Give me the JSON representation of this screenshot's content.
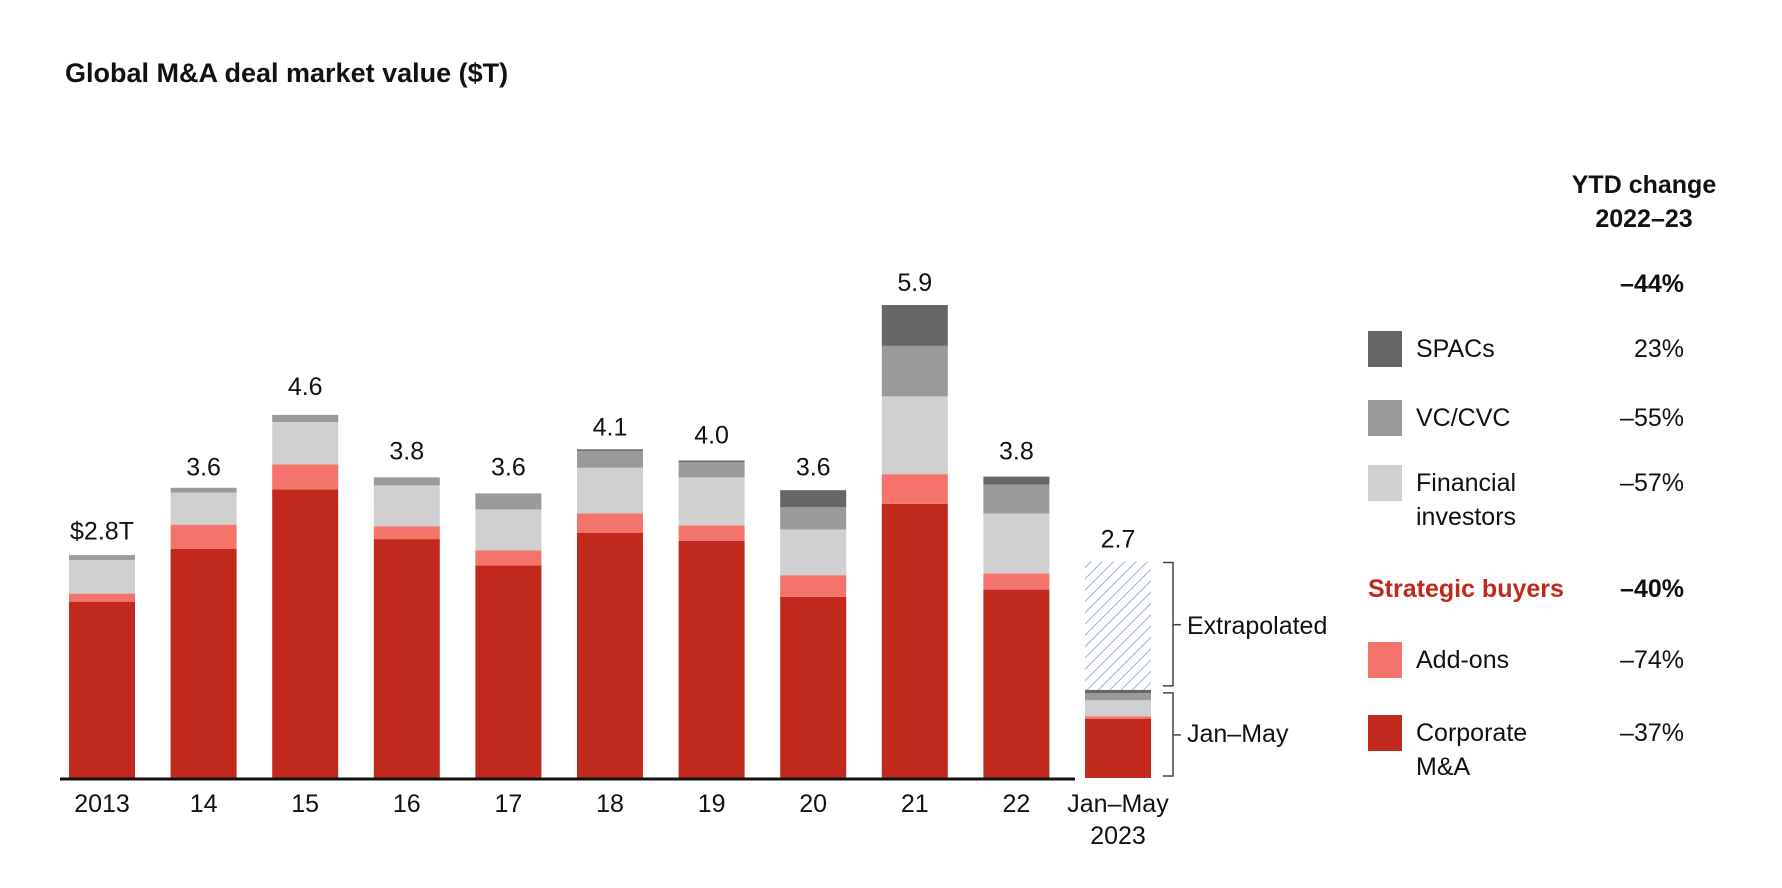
{
  "chart_data": {
    "type": "stacked_bar",
    "title": "Global M&A deal market value ($T)",
    "categories": [
      "2013",
      "14",
      "15",
      "16",
      "17",
      "18",
      "19",
      "20",
      "21",
      "22",
      "Jan–May 2023"
    ],
    "series": [
      {
        "name": "Corporate M&A",
        "color": "#c0291b",
        "values": [
          2.2,
          2.86,
          3.6,
          2.98,
          2.65,
          3.06,
          2.96,
          2.26,
          3.42,
          2.35,
          0.74
        ],
        "change": -37,
        "change_label": "–37%"
      },
      {
        "name": "Add-ons",
        "color": "#f4736b",
        "values": [
          0.1,
          0.3,
          0.31,
          0.16,
          0.19,
          0.24,
          0.19,
          0.27,
          0.37,
          0.2,
          0.03
        ],
        "change": -74,
        "change_label": "–74%"
      },
      {
        "name": "Financial investors",
        "color": "#d0d0d0",
        "values": [
          0.42,
          0.4,
          0.53,
          0.51,
          0.51,
          0.57,
          0.6,
          0.57,
          0.97,
          0.75,
          0.2
        ],
        "change": -57,
        "change_label": "–57%"
      },
      {
        "name": "VC/CVC",
        "color": "#9a9a9a",
        "values": [
          0.06,
          0.06,
          0.09,
          0.1,
          0.2,
          0.21,
          0.19,
          0.28,
          0.63,
          0.36,
          0.09
        ],
        "change": -55,
        "change_label": "–55%"
      },
      {
        "name": "SPACs",
        "color": "#666666",
        "values": [
          0,
          0,
          0,
          0,
          0,
          0.02,
          0.02,
          0.21,
          0.51,
          0.1,
          0.04
        ],
        "change": 23,
        "change_label": "23%"
      }
    ],
    "totals": {
      "values": [
        2.8,
        3.6,
        4.6,
        3.8,
        3.6,
        4.1,
        4.0,
        3.6,
        5.9,
        3.8,
        2.7
      ],
      "value_labels": [
        "$2.8T",
        "3.6",
        "4.6",
        "3.8",
        "3.6",
        "4.1",
        "4.0",
        "3.6",
        "5.9",
        "3.8",
        "2.7"
      ]
    },
    "extrapolated": {
      "label": "Extrapolated",
      "value": 1.6,
      "color": "#9fb3c8"
    },
    "ytd_label": "Jan–May",
    "ytd_header": "YTD change 2022–23",
    "total_change": {
      "value": -44,
      "label": "–44%"
    },
    "group": {
      "name": "Strategic buyers",
      "value": -40,
      "label": "–40%",
      "color": "#c0291b"
    }
  }
}
